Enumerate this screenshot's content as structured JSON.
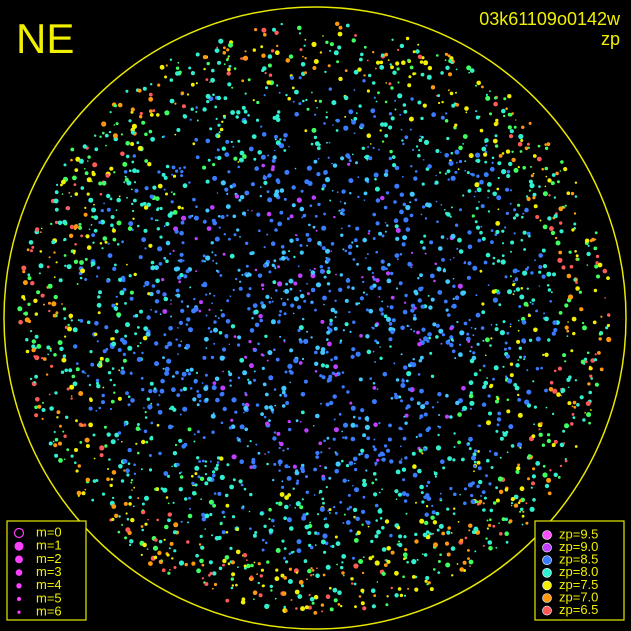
{
  "corner_label": "NE",
  "image_id": "03k61109o0142w",
  "field": "zp",
  "magnitude_legend": [
    "m=0",
    "m=1",
    "m=2",
    "m=3",
    "m=4",
    "m=5",
    "m=6"
  ],
  "zp_legend": [
    {
      "label": "zp=9.5",
      "color": "#ff50ff"
    },
    {
      "label": "zp=9.0",
      "color": "#c040ff"
    },
    {
      "label": "zp=8.5",
      "color": "#3a7cff"
    },
    {
      "label": "zp=8.0",
      "color": "#30f0d0"
    },
    {
      "label": "zp=7.5",
      "color": "#f0f000"
    },
    {
      "label": "zp=7.0",
      "color": "#ff9a10"
    },
    {
      "label": "zp=6.5",
      "color": "#ff5a5a"
    }
  ]
}
